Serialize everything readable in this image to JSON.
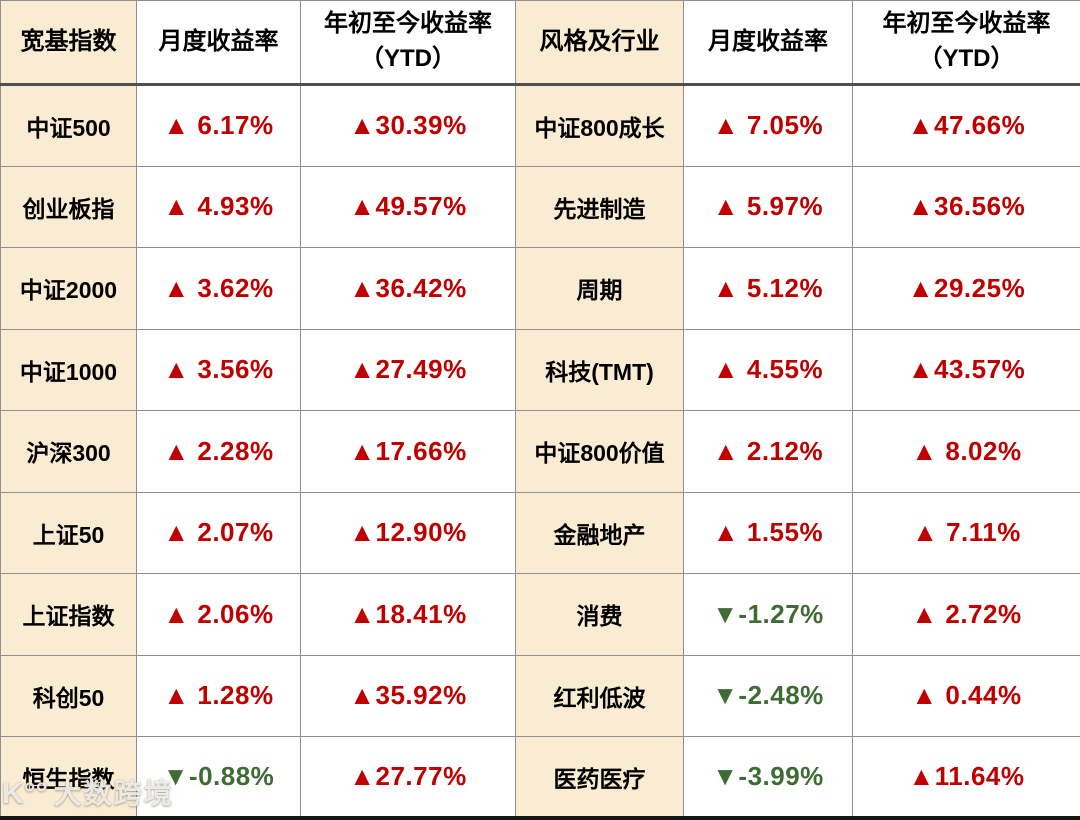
{
  "columns": {
    "left_group_title": "宽基指数",
    "right_group_title": "风格及行业",
    "monthly": "月度收益率",
    "ytd_line1": "年初至今收益率",
    "ytd_line2": "（YTD）"
  },
  "colors": {
    "up": "#c00000",
    "down": "#3f6b35",
    "row_label_bg": "#faecd2",
    "grid_line": "#8f8f8f",
    "header_rule": "#4f4f4f",
    "bottom_rule": "#161616"
  },
  "watermark": {
    "logo_glyph": "K°°",
    "text": "大数跨境"
  },
  "rows": [
    {
      "left": {
        "label": "中证500",
        "monthly": {
          "dir": "up",
          "text": "▲ 6.17%"
        },
        "ytd": {
          "dir": "up",
          "text": "▲30.39%"
        }
      },
      "right": {
        "label": "中证800成长",
        "monthly": {
          "dir": "up",
          "text": "▲ 7.05%"
        },
        "ytd": {
          "dir": "up",
          "text": "▲47.66%"
        }
      }
    },
    {
      "left": {
        "label": "创业板指",
        "monthly": {
          "dir": "up",
          "text": "▲ 4.93%"
        },
        "ytd": {
          "dir": "up",
          "text": "▲49.57%"
        }
      },
      "right": {
        "label": "先进制造",
        "monthly": {
          "dir": "up",
          "text": "▲ 5.97%"
        },
        "ytd": {
          "dir": "up",
          "text": "▲36.56%"
        }
      }
    },
    {
      "left": {
        "label": "中证2000",
        "monthly": {
          "dir": "up",
          "text": "▲ 3.62%"
        },
        "ytd": {
          "dir": "up",
          "text": "▲36.42%"
        }
      },
      "right": {
        "label": "周期",
        "monthly": {
          "dir": "up",
          "text": "▲ 5.12%"
        },
        "ytd": {
          "dir": "up",
          "text": "▲29.25%"
        }
      }
    },
    {
      "left": {
        "label": "中证1000",
        "monthly": {
          "dir": "up",
          "text": "▲ 3.56%"
        },
        "ytd": {
          "dir": "up",
          "text": "▲27.49%"
        }
      },
      "right": {
        "label": "科技(TMT)",
        "monthly": {
          "dir": "up",
          "text": "▲ 4.55%"
        },
        "ytd": {
          "dir": "up",
          "text": "▲43.57%"
        }
      }
    },
    {
      "left": {
        "label": "沪深300",
        "monthly": {
          "dir": "up",
          "text": "▲ 2.28%"
        },
        "ytd": {
          "dir": "up",
          "text": "▲17.66%"
        }
      },
      "right": {
        "label": "中证800价值",
        "monthly": {
          "dir": "up",
          "text": "▲ 2.12%"
        },
        "ytd": {
          "dir": "up",
          "text": "▲ 8.02%"
        }
      }
    },
    {
      "left": {
        "label": "上证50",
        "monthly": {
          "dir": "up",
          "text": "▲ 2.07%"
        },
        "ytd": {
          "dir": "up",
          "text": "▲12.90%"
        }
      },
      "right": {
        "label": "金融地产",
        "monthly": {
          "dir": "up",
          "text": "▲ 1.55%"
        },
        "ytd": {
          "dir": "up",
          "text": "▲ 7.11%"
        }
      }
    },
    {
      "left": {
        "label": "上证指数",
        "monthly": {
          "dir": "up",
          "text": "▲ 2.06%"
        },
        "ytd": {
          "dir": "up",
          "text": "▲18.41%"
        }
      },
      "right": {
        "label": "消费",
        "monthly": {
          "dir": "down",
          "text": "▼-1.27%"
        },
        "ytd": {
          "dir": "up",
          "text": "▲ 2.72%"
        }
      }
    },
    {
      "left": {
        "label": "科创50",
        "monthly": {
          "dir": "up",
          "text": "▲ 1.28%"
        },
        "ytd": {
          "dir": "up",
          "text": "▲35.92%"
        }
      },
      "right": {
        "label": "红利低波",
        "monthly": {
          "dir": "down",
          "text": "▼-2.48%"
        },
        "ytd": {
          "dir": "up",
          "text": "▲ 0.44%"
        }
      }
    },
    {
      "left": {
        "label": "恒生指数",
        "monthly": {
          "dir": "down",
          "text": "▼-0.88%"
        },
        "ytd": {
          "dir": "up",
          "text": "▲27.77%"
        }
      },
      "right": {
        "label": "医药医疗",
        "monthly": {
          "dir": "down",
          "text": "▼-3.99%"
        },
        "ytd": {
          "dir": "up",
          "text": "▲11.64%"
        }
      }
    }
  ],
  "chart_data": [
    {
      "type": "table",
      "title": "宽基指数",
      "columns": [
        "宽基指数",
        "月度收益率",
        "年初至今收益率（YTD）"
      ],
      "rows": [
        [
          "中证500",
          6.17,
          30.39
        ],
        [
          "创业板指",
          4.93,
          49.57
        ],
        [
          "中证2000",
          3.62,
          36.42
        ],
        [
          "中证1000",
          3.56,
          27.49
        ],
        [
          "沪深300",
          2.28,
          17.66
        ],
        [
          "上证50",
          2.07,
          12.9
        ],
        [
          "上证指数",
          2.06,
          18.41
        ],
        [
          "科创50",
          1.28,
          35.92
        ],
        [
          "恒生指数",
          -0.88,
          27.77
        ]
      ]
    },
    {
      "type": "table",
      "title": "风格及行业",
      "columns": [
        "风格及行业",
        "月度收益率",
        "年初至今收益率（YTD）"
      ],
      "rows": [
        [
          "中证800成长",
          7.05,
          47.66
        ],
        [
          "先进制造",
          5.97,
          36.56
        ],
        [
          "周期",
          5.12,
          29.25
        ],
        [
          "科技(TMT)",
          4.55,
          43.57
        ],
        [
          "中证800价值",
          2.12,
          8.02
        ],
        [
          "金融地产",
          1.55,
          7.11
        ],
        [
          "消费",
          -1.27,
          2.72
        ],
        [
          "红利低波",
          -2.48,
          0.44
        ],
        [
          "医药医疗",
          -3.99,
          11.64
        ]
      ]
    }
  ]
}
